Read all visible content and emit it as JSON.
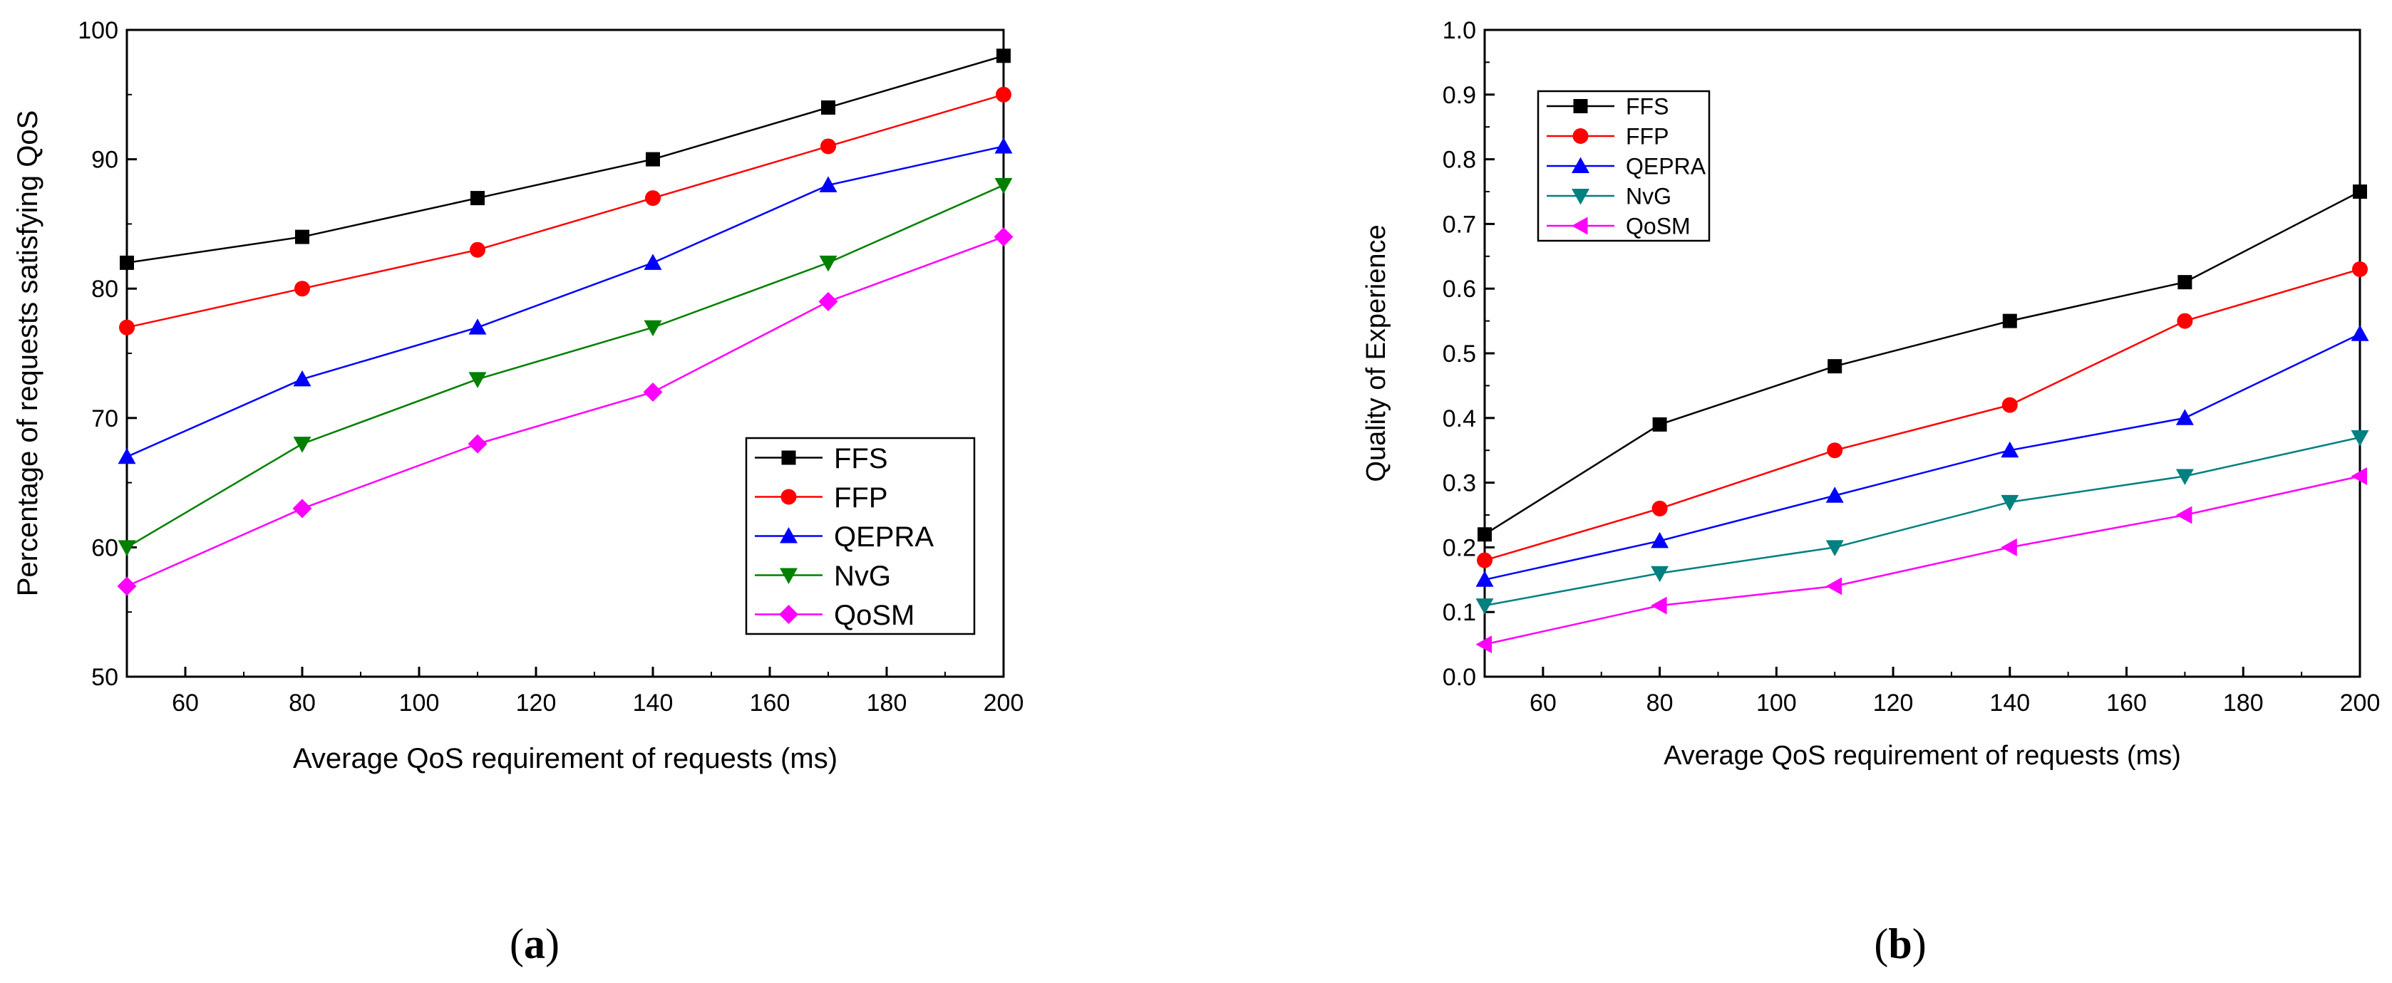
{
  "chart_data": [
    {
      "id": "a",
      "type": "line",
      "caption": "(a)",
      "title": "",
      "xlabel": "Average QoS requirement of requests (ms)",
      "ylabel": "Percentage of requests satisfying QoS",
      "xlim": [
        50,
        200
      ],
      "ylim": [
        50,
        100
      ],
      "xticks": [
        60,
        80,
        100,
        120,
        140,
        160,
        180,
        200
      ],
      "yticks": [
        50,
        60,
        70,
        80,
        90,
        100
      ],
      "y_decimals": 0,
      "x": [
        50,
        80,
        110,
        140,
        170,
        200
      ],
      "legend_position": "bottom-right",
      "series": [
        {
          "name": "FFS",
          "color": "#000000",
          "marker": "square",
          "values": [
            82,
            84,
            87,
            90,
            94,
            98
          ]
        },
        {
          "name": "FFP",
          "color": "#ff0000",
          "marker": "circle",
          "values": [
            77,
            80,
            83,
            87,
            91,
            95
          ]
        },
        {
          "name": "QEPRA",
          "color": "#0000ff",
          "marker": "triangle-up",
          "values": [
            67,
            73,
            77,
            82,
            88,
            91
          ]
        },
        {
          "name": "NvG",
          "color": "#008000",
          "marker": "triangle-down",
          "values": [
            60,
            68,
            73,
            77,
            82,
            88
          ]
        },
        {
          "name": "QoSM",
          "color": "#ff00ff",
          "marker": "diamond",
          "values": [
            57,
            63,
            68,
            72,
            79,
            84
          ]
        }
      ]
    },
    {
      "id": "b",
      "type": "line",
      "caption": "(b)",
      "title": "",
      "xlabel": "Average QoS requirement of requests (ms)",
      "ylabel": "Quality of Experience",
      "xlim": [
        50,
        200
      ],
      "ylim": [
        0,
        1.0
      ],
      "xticks": [
        60,
        80,
        100,
        120,
        140,
        160,
        180,
        200
      ],
      "yticks": [
        0.0,
        0.1,
        0.2,
        0.3,
        0.4,
        0.5,
        0.6,
        0.7,
        0.8,
        0.9,
        1.0
      ],
      "y_decimals": 1,
      "x": [
        50,
        80,
        110,
        140,
        170,
        200
      ],
      "legend_position": "top-left",
      "series": [
        {
          "name": "FFS",
          "color": "#000000",
          "marker": "square",
          "values": [
            0.22,
            0.39,
            0.48,
            0.55,
            0.61,
            0.75
          ]
        },
        {
          "name": "FFP",
          "color": "#ff0000",
          "marker": "circle",
          "values": [
            0.18,
            0.26,
            0.35,
            0.42,
            0.55,
            0.63
          ]
        },
        {
          "name": "QEPRA",
          "color": "#0000ff",
          "marker": "triangle-up",
          "values": [
            0.15,
            0.21,
            0.28,
            0.35,
            0.4,
            0.53
          ]
        },
        {
          "name": "NvG",
          "color": "#008080",
          "marker": "triangle-down",
          "values": [
            0.11,
            0.16,
            0.2,
            0.27,
            0.31,
            0.37
          ]
        },
        {
          "name": "QoSM",
          "color": "#ff00ff",
          "marker": "triangle-left",
          "values": [
            0.05,
            0.11,
            0.14,
            0.2,
            0.25,
            0.31
          ]
        }
      ]
    }
  ]
}
